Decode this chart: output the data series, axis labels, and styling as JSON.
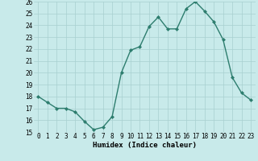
{
  "x": [
    0,
    1,
    2,
    3,
    4,
    5,
    6,
    7,
    8,
    9,
    10,
    11,
    12,
    13,
    14,
    15,
    16,
    17,
    18,
    19,
    20,
    21,
    22,
    23
  ],
  "y": [
    18,
    17.5,
    17,
    17,
    16.7,
    15.9,
    15.2,
    15.4,
    16.3,
    20.0,
    21.9,
    22.2,
    23.9,
    24.7,
    23.7,
    23.7,
    25.4,
    26.0,
    25.2,
    24.3,
    22.8,
    19.6,
    18.3,
    17.7
  ],
  "line_color": "#2d7d6e",
  "marker": "D",
  "marker_size": 2.0,
  "bg_color": "#c8eaea",
  "grid_color": "#a8d0d0",
  "xlabel": "Humidex (Indice chaleur)",
  "ylim": [
    15,
    26
  ],
  "xlim": [
    -0.5,
    23.5
  ],
  "yticks": [
    15,
    16,
    17,
    18,
    19,
    20,
    21,
    22,
    23,
    24,
    25,
    26
  ],
  "xticks": [
    0,
    1,
    2,
    3,
    4,
    5,
    6,
    7,
    8,
    9,
    10,
    11,
    12,
    13,
    14,
    15,
    16,
    17,
    18,
    19,
    20,
    21,
    22,
    23
  ],
  "label_fontsize": 6.5,
  "tick_fontsize": 5.5,
  "linewidth": 1.0
}
